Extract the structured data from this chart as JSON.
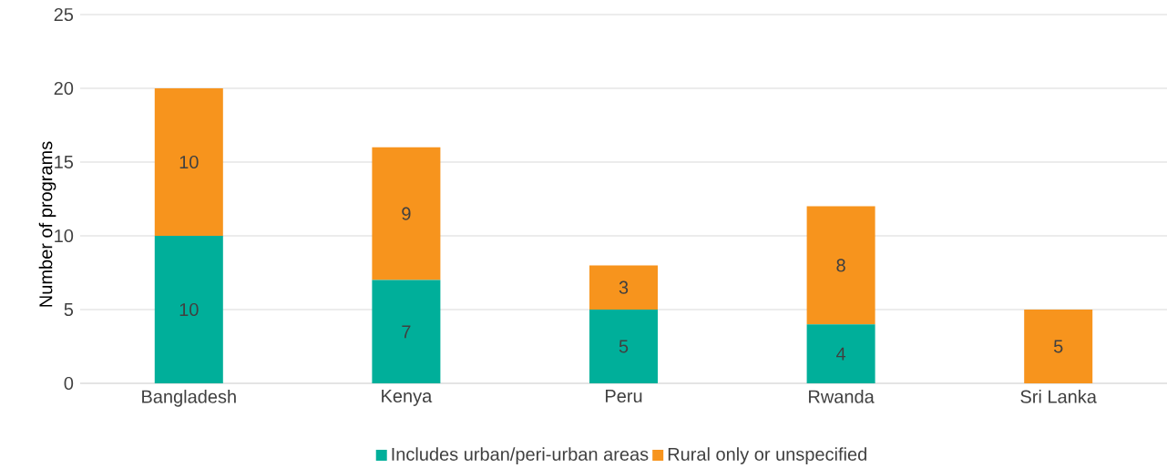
{
  "chart_data": {
    "type": "bar",
    "stacked": true,
    "ylabel": "Number of programs",
    "categories": [
      "Bangladesh",
      "Kenya",
      "Peru",
      "Rwanda",
      "Sri Lanka"
    ],
    "series": [
      {
        "name": "Includes urban/peri-urban areas",
        "color": "#00af9a",
        "values": [
          10,
          7,
          5,
          4,
          0
        ],
        "value_labels": [
          "10",
          "7",
          "5",
          "4",
          null
        ]
      },
      {
        "name": "Rural only or unspecified",
        "color": "#f7941d",
        "values": [
          10,
          9,
          3,
          8,
          5
        ],
        "value_labels": [
          "10",
          "9",
          "3",
          "8",
          "5"
        ]
      }
    ],
    "ylim": [
      0,
      25
    ],
    "yticks": [
      0,
      5,
      10,
      15,
      20,
      25
    ],
    "grid": "y",
    "legend": "bottom"
  }
}
